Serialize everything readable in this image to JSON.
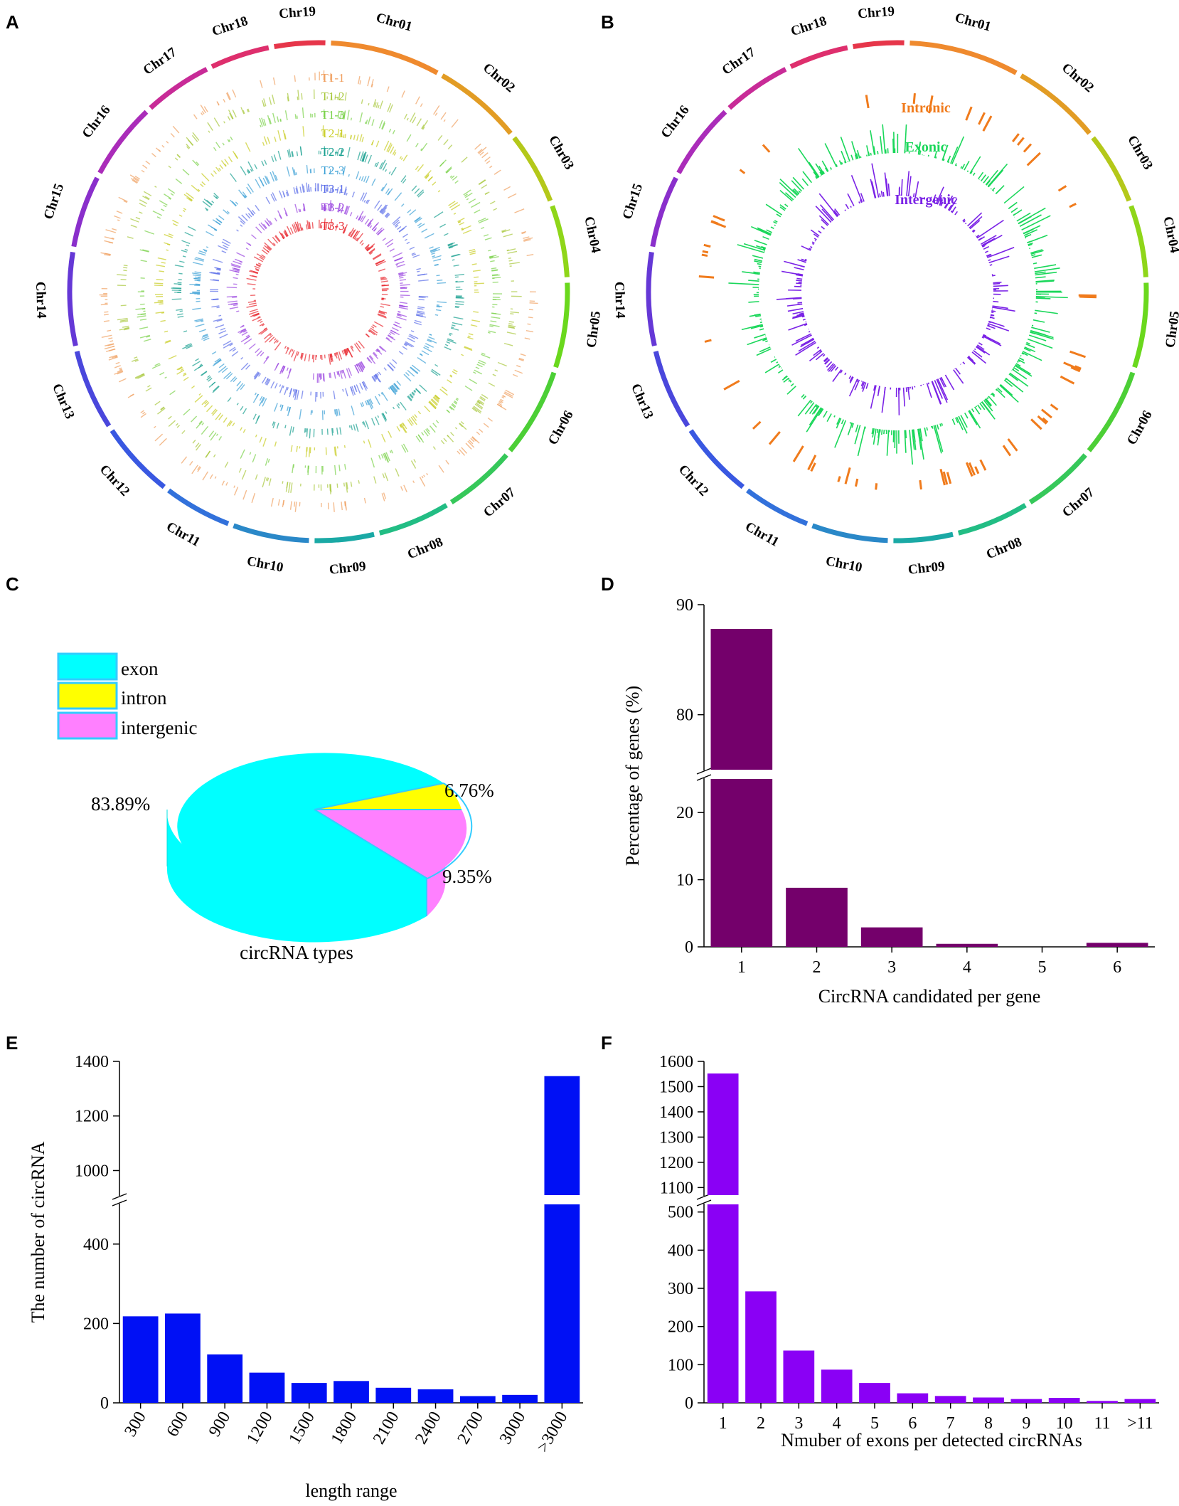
{
  "panels": {
    "A": {
      "letter": "A"
    },
    "B": {
      "letter": "B"
    },
    "C": {
      "letter": "C"
    },
    "D": {
      "letter": "D"
    },
    "E": {
      "letter": "E"
    },
    "F": {
      "letter": "F"
    }
  },
  "colors": {
    "panelD": "#74006b",
    "panelE": "#0010f5",
    "panelF": "#8a00f5",
    "exon": "#00ffff",
    "intron": "#ffff00",
    "intergenic": "#ff80ff",
    "pieBorder": "#33ccff",
    "intronic_track": "#f07b1c",
    "exonic_track": "#1ad75a",
    "intergenic_track": "#7a22e6"
  },
  "chart_data": [
    {
      "panel": "A",
      "type": "circos",
      "chromosomes": [
        "Chr01",
        "Chr02",
        "Chr03",
        "Chr04",
        "Chr05",
        "Chr06",
        "Chr07",
        "Chr08",
        "Chr09",
        "Chr10",
        "Chr11",
        "Chr12",
        "Chr13",
        "Chr14",
        "Chr15",
        "Chr16",
        "Chr17",
        "Chr18",
        "Chr19"
      ],
      "chromosome_colors": [
        "#ef8a2e",
        "#e29c24",
        "#b4c81a",
        "#8fd619",
        "#6ad81d",
        "#4ccf36",
        "#36c85a",
        "#22bd84",
        "#1aa9a5",
        "#2a88c8",
        "#3271db",
        "#3958e1",
        "#4a47dc",
        "#6538d6",
        "#8a2fcb",
        "#aa2cb9",
        "#c82b97",
        "#de2f6d",
        "#e6364a"
      ],
      "track_labels": [
        "T1-1",
        "T1-2",
        "T1-3",
        "T2-1",
        "T2-2",
        "T2-3",
        "T3-1",
        "T3-2",
        "T3-3"
      ],
      "track_colors": [
        "#f0a060",
        "#a8c83c",
        "#7ad24a",
        "#c8cc20",
        "#18a090",
        "#3aa0d6",
        "#5b6de8",
        "#9a44e0",
        "#e8262e"
      ]
    },
    {
      "panel": "B",
      "type": "circos",
      "chromosomes": [
        "Chr01",
        "Chr02",
        "Chr03",
        "Chr04",
        "Chr05",
        "Chr06",
        "Chr07",
        "Chr08",
        "Chr09",
        "Chr10",
        "Chr11",
        "Chr12",
        "Chr13",
        "Chr14",
        "Chr15",
        "Chr16",
        "Chr17",
        "Chr18",
        "Chr19"
      ],
      "track_labels": [
        "Intronic",
        "Exonic",
        "Intergenic"
      ]
    },
    {
      "panel": "C",
      "type": "pie",
      "title": "circRNA types",
      "labels": [
        "exon",
        "intron",
        "intergenic"
      ],
      "values": [
        83.89,
        6.76,
        9.35
      ],
      "value_labels": [
        "83.89%",
        "6.76%",
        "9.35%"
      ]
    },
    {
      "panel": "D",
      "type": "bar",
      "categories": [
        "1",
        "2",
        "3",
        "4",
        "5",
        "6"
      ],
      "values": [
        87.8,
        8.8,
        2.9,
        0.45,
        0,
        0.6
      ],
      "xlabel": "CircRNA candidated per gene",
      "ylabel": "Percentage of genes (%)",
      "axis_break": {
        "lower": [
          0,
          25
        ],
        "upper": [
          75,
          90
        ]
      },
      "yticks": [
        "0",
        "10",
        "20",
        "80",
        "90"
      ]
    },
    {
      "panel": "E",
      "type": "bar",
      "categories": [
        "300",
        "600",
        "900",
        "1200",
        "1500",
        "1800",
        "2100",
        "2400",
        "2700",
        "3000",
        ">3000"
      ],
      "values": [
        218,
        225,
        122,
        76,
        50,
        55,
        38,
        34,
        17,
        20,
        1346
      ],
      "xlabel": "length range",
      "ylabel": "The number of circRNA",
      "axis_break": {
        "lower": [
          0,
          500
        ],
        "upper": [
          910,
          1400
        ]
      },
      "yticks": [
        "0",
        "200",
        "400",
        "1000",
        "1200",
        "1400"
      ]
    },
    {
      "panel": "F",
      "type": "bar",
      "categories": [
        "1",
        "2",
        "3",
        "4",
        "5",
        "6",
        "7",
        "8",
        "9",
        "10",
        "11",
        ">11"
      ],
      "values": [
        1552,
        292,
        137,
        87,
        52,
        25,
        18,
        14,
        10,
        13,
        5,
        10
      ],
      "xlabel": "Nmuber of exons per detected circRNAs",
      "ylabel": "",
      "axis_break": {
        "lower": [
          0,
          520
        ],
        "upper": [
          1070,
          1600
        ]
      },
      "yticks": [
        "0",
        "100",
        "200",
        "300",
        "400",
        "500",
        "1100",
        "1200",
        "1300",
        "1400",
        "1500",
        "1600"
      ]
    }
  ]
}
